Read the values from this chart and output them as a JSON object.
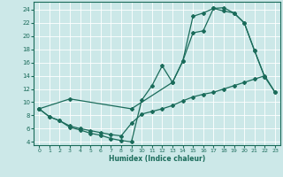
{
  "xlabel": "Humidex (Indice chaleur)",
  "bg_color": "#cce8e8",
  "line_color": "#1a6b5a",
  "grid_color": "#ffffff",
  "xlim": [
    -0.5,
    23.5
  ],
  "ylim": [
    3.5,
    25.2
  ],
  "xticks": [
    0,
    1,
    2,
    3,
    4,
    5,
    6,
    7,
    8,
    9,
    10,
    11,
    12,
    13,
    14,
    15,
    16,
    17,
    18,
    19,
    20,
    21,
    22,
    23
  ],
  "yticks": [
    4,
    6,
    8,
    10,
    12,
    14,
    16,
    18,
    20,
    22,
    24
  ],
  "curve1_x": [
    0,
    1,
    2,
    3,
    4,
    5,
    6,
    7,
    8,
    9,
    10,
    11,
    12,
    13,
    14,
    15,
    16,
    17,
    18,
    19,
    20,
    21,
    22
  ],
  "curve1_y": [
    9.0,
    7.8,
    7.2,
    6.2,
    5.8,
    5.3,
    5.0,
    4.5,
    4.2,
    4.0,
    10.3,
    12.5,
    15.5,
    13.0,
    16.2,
    23.0,
    23.5,
    24.2,
    24.3,
    23.5,
    22.0,
    17.8,
    13.8
  ],
  "curve2_x": [
    0,
    1,
    2,
    3,
    4,
    5,
    6,
    7,
    8,
    9,
    10,
    11,
    12,
    13,
    14,
    15,
    16,
    17,
    18,
    19,
    20,
    21,
    22,
    23
  ],
  "curve2_y": [
    9.0,
    7.8,
    7.2,
    6.4,
    6.0,
    5.7,
    5.4,
    5.1,
    4.9,
    6.8,
    8.2,
    8.6,
    9.0,
    9.5,
    10.2,
    10.8,
    11.2,
    11.5,
    12.0,
    12.5,
    13.0,
    13.5,
    14.0,
    11.5
  ],
  "curve3_x": [
    0,
    3,
    9,
    13,
    14,
    15,
    16,
    17,
    18,
    19,
    20,
    21,
    22,
    23
  ],
  "curve3_y": [
    9.0,
    10.5,
    9.0,
    13.0,
    16.2,
    20.5,
    20.8,
    24.2,
    23.8,
    23.5,
    22.0,
    17.8,
    13.8,
    11.5
  ]
}
